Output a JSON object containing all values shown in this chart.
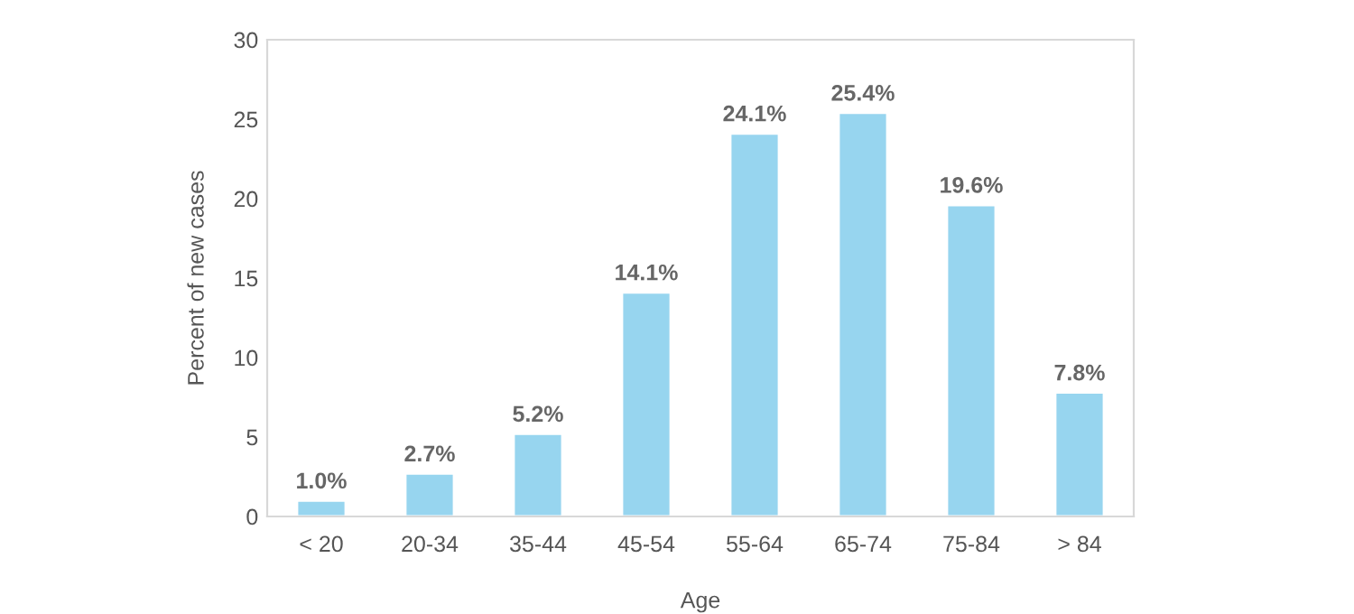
{
  "chart_data": {
    "type": "bar",
    "xlabel": "Age",
    "ylabel": "Percent of new cases",
    "categories": [
      "< 20",
      "20-34",
      "35-44",
      "45-54",
      "55-64",
      "65-74",
      "75-84",
      "> 84"
    ],
    "values": [
      1.0,
      2.7,
      5.2,
      14.1,
      24.1,
      25.4,
      19.6,
      7.8
    ],
    "value_labels": [
      "1.0%",
      "2.7%",
      "5.2%",
      "14.1%",
      "24.1%",
      "25.4%",
      "19.6%",
      "7.8%"
    ],
    "color": "#97d5ef",
    "ylim": [
      0,
      30
    ],
    "yticks": [
      0,
      5,
      10,
      15,
      20,
      25,
      30
    ],
    "grid": false,
    "legend": false
  }
}
